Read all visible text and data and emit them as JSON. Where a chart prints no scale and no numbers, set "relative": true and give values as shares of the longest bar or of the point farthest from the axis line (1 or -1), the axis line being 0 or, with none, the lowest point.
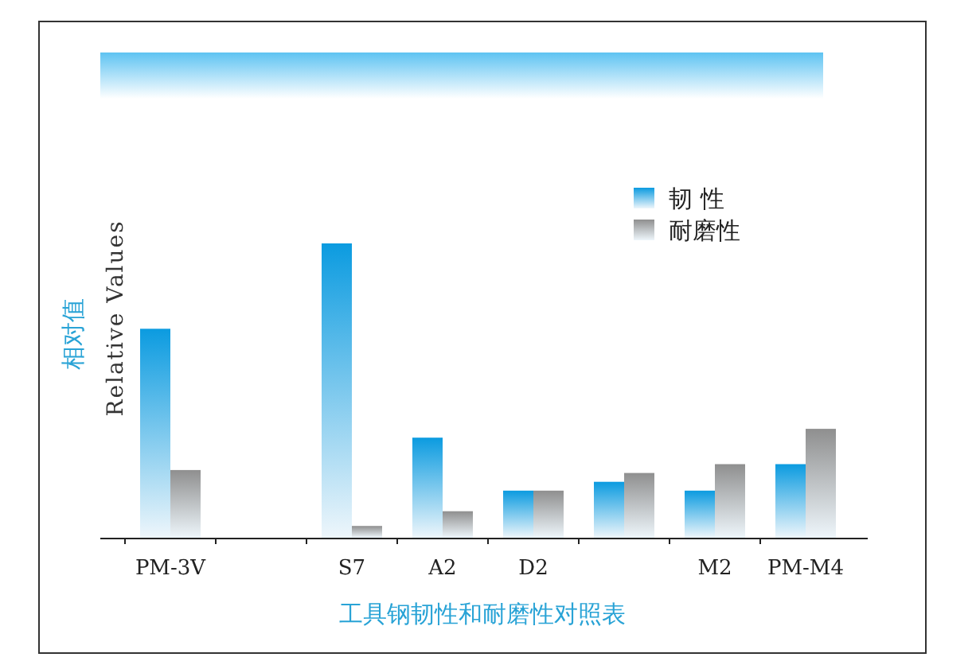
{
  "chart_data": {
    "type": "bar",
    "relative": true,
    "xlabel": "工具钢韧性和耐磨性对照表",
    "ylabel": "相对值",
    "annotations": [
      "Relative Values"
    ],
    "categories": [
      "PM-3V",
      null,
      "S7",
      "A2",
      "D2",
      null,
      "M2",
      "PM-M4"
    ],
    "series": [
      {
        "name": "韧 性",
        "color": "#0b9be0",
        "values": [
          0.71,
          null,
          1,
          0.34,
          0.16,
          0.19,
          0.16,
          0.25
        ]
      },
      {
        "name": "耐磨性",
        "color": "#8f8f8f",
        "values": [
          0.23,
          null,
          0.04,
          0.09,
          0.16,
          0.22,
          0.25,
          0.37
        ]
      }
    ],
    "legend": "top right"
  }
}
